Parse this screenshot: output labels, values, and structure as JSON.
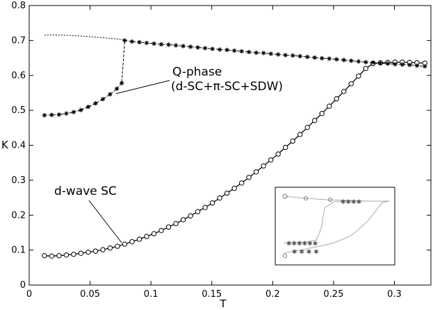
{
  "chart_data": {
    "type": "line",
    "title": "",
    "xlabel": "T",
    "ylabel": "K",
    "xlim": [
      0,
      0.33
    ],
    "ylim": [
      0,
      0.8
    ],
    "xticks": [
      "0",
      "0.05",
      "0.1",
      "0.15",
      "0.2",
      "0.25",
      "0.3"
    ],
    "yticks": [
      "0",
      "0.1",
      "0.2",
      "0.3",
      "0.4",
      "0.5",
      "0.6",
      "0.7",
      "0.8"
    ],
    "grid": false,
    "series": [
      {
        "name": "d-wave SC",
        "marker": "circle",
        "x": [
          0.0125,
          0.0185,
          0.0245,
          0.0305,
          0.0365,
          0.0425,
          0.0485,
          0.0545,
          0.0605,
          0.0665,
          0.0725,
          0.0785,
          0.0845,
          0.0905,
          0.0965,
          0.1025,
          0.1085,
          0.1145,
          0.1205,
          0.1265,
          0.1325,
          0.1385,
          0.1445,
          0.1505,
          0.1565,
          0.1625,
          0.1685,
          0.1745,
          0.1805,
          0.1865,
          0.1925,
          0.1985,
          0.2045,
          0.2105,
          0.2165,
          0.2225,
          0.2285,
          0.2345,
          0.2405,
          0.2465,
          0.2525,
          0.2585,
          0.2645,
          0.2705,
          0.2765,
          0.2825,
          0.2885,
          0.2945,
          0.3005,
          0.3065,
          0.3125,
          0.3185,
          0.325
        ],
        "y": [
          0.084,
          0.083,
          0.084,
          0.086,
          0.088,
          0.091,
          0.094,
          0.097,
          0.101,
          0.106,
          0.111,
          0.117,
          0.124,
          0.131,
          0.139,
          0.147,
          0.156,
          0.166,
          0.176,
          0.187,
          0.198,
          0.21,
          0.222,
          0.235,
          0.249,
          0.263,
          0.277,
          0.292,
          0.308,
          0.324,
          0.341,
          0.358,
          0.375,
          0.394,
          0.412,
          0.431,
          0.451,
          0.471,
          0.491,
          0.512,
          0.533,
          0.554,
          0.576,
          0.598,
          0.62,
          0.634,
          0.636,
          0.637,
          0.638,
          0.638,
          0.637,
          0.636,
          0.635
        ]
      },
      {
        "name": "Q-phase (d-SC+π-SC+SDW)",
        "marker": "star",
        "x": [
          0.0125,
          0.0185,
          0.0245,
          0.0305,
          0.0365,
          0.0425,
          0.0485,
          0.0545,
          0.0605,
          0.0665,
          0.072,
          0.076,
          0.0785,
          0.0845,
          0.0905,
          0.0965,
          0.1025,
          0.1085,
          0.1145,
          0.1205,
          0.1265,
          0.1325,
          0.1385,
          0.1445,
          0.1505,
          0.1565,
          0.1625,
          0.1685,
          0.1745,
          0.1805,
          0.1865,
          0.1925,
          0.1985,
          0.2045,
          0.2105,
          0.2165,
          0.2225,
          0.2285,
          0.2345,
          0.2405,
          0.2465,
          0.2525,
          0.2585,
          0.2645,
          0.2705,
          0.2765,
          0.2825,
          0.2885,
          0.2945,
          0.3005,
          0.3065,
          0.3125,
          0.3185,
          0.325
        ],
        "y": [
          0.486,
          0.487,
          0.488,
          0.491,
          0.495,
          0.501,
          0.51,
          0.52,
          0.532,
          0.546,
          0.562,
          0.578,
          0.7,
          0.697,
          0.695,
          0.693,
          0.691,
          0.689,
          0.688,
          0.686,
          0.684,
          0.682,
          0.68,
          0.678,
          0.676,
          0.674,
          0.673,
          0.671,
          0.669,
          0.667,
          0.665,
          0.664,
          0.662,
          0.66,
          0.658,
          0.657,
          0.655,
          0.653,
          0.651,
          0.649,
          0.648,
          0.646,
          0.644,
          0.642,
          0.64,
          0.638,
          0.637,
          0.635,
          0.634,
          0.632,
          0.631,
          0.63,
          0.628,
          0.626
        ]
      },
      {
        "name": "dotted extension",
        "marker": "none",
        "x": [
          0.0125,
          0.02,
          0.03,
          0.04,
          0.05,
          0.06,
          0.07,
          0.0785
        ],
        "y": [
          0.716,
          0.716,
          0.715,
          0.713,
          0.711,
          0.708,
          0.705,
          0.702
        ]
      }
    ],
    "annotations": [
      {
        "text": "Q-phase",
        "line2": "(d-SC+π-SC+SDW)"
      },
      {
        "text": "d-wave SC"
      }
    ]
  },
  "labels": {
    "q_phase": "Q-phase",
    "q_phase_sub": "(d-SC+π-SC+SDW)",
    "d_wave": "d-wave SC",
    "x_axis": "T",
    "y_axis": "K"
  }
}
